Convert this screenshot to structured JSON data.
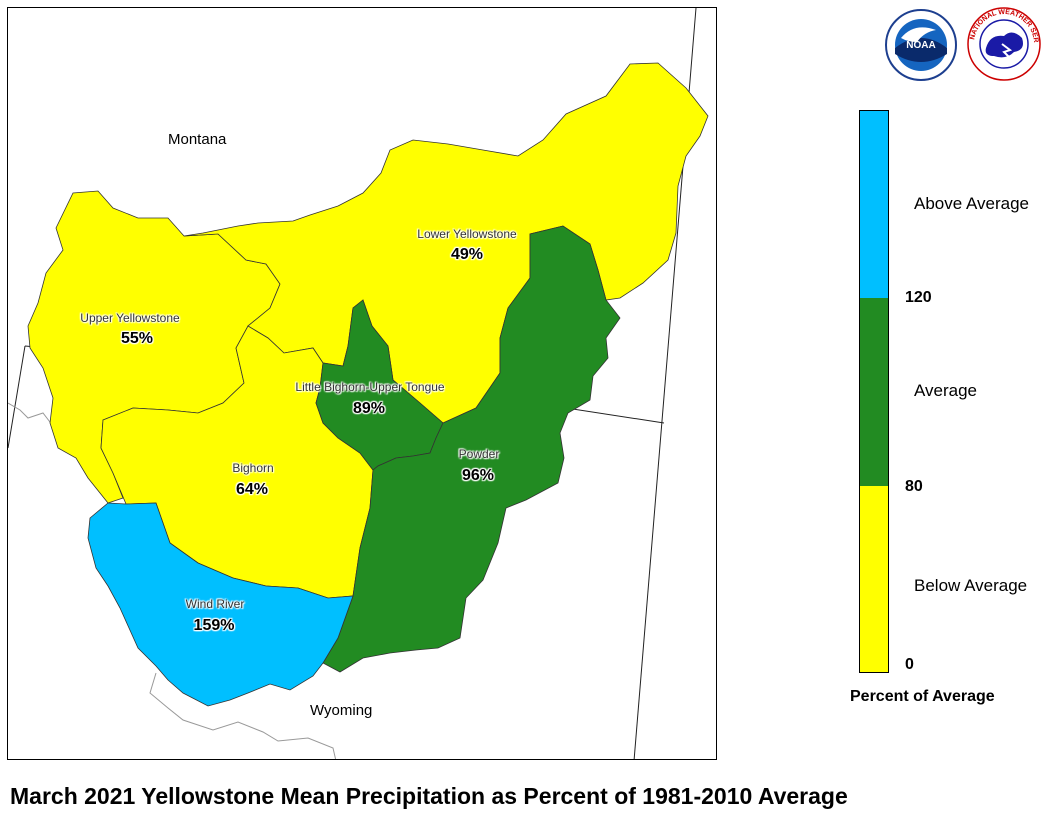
{
  "map": {
    "state_labels": [
      {
        "text": "Montana"
      },
      {
        "text": "Wyoming"
      }
    ],
    "basins": [
      {
        "name": "Upper Yellowstone",
        "value": "55%",
        "category": "below",
        "color": "#ffff00"
      },
      {
        "name": "Lower Yellowstone",
        "value": "49%",
        "category": "below",
        "color": "#ffff00"
      },
      {
        "name": "Little Bighorn-Upper Tongue",
        "value": "89%",
        "category": "average",
        "color": "#228b22"
      },
      {
        "name": "Powder",
        "value": "96%",
        "category": "average",
        "color": "#228b22"
      },
      {
        "name": "Bighorn",
        "value": "64%",
        "category": "below",
        "color": "#ffff00"
      },
      {
        "name": "Wind River",
        "value": "159%",
        "category": "above",
        "color": "#00bfff"
      }
    ]
  },
  "legend": {
    "title": "Percent of Average",
    "categories": [
      {
        "label": "Above Average",
        "color": "#00bfff"
      },
      {
        "label": "Average",
        "color": "#228b22"
      },
      {
        "label": "Below Average",
        "color": "#ffff00"
      }
    ],
    "ticks": [
      "120",
      "80",
      "0"
    ]
  },
  "title": "March 2021 Yellowstone Mean Precipitation as Percent of 1981-2010 Average",
  "logos": [
    {
      "name": "noaa-logo",
      "text": "NOAA"
    },
    {
      "name": "nws-logo",
      "text": "NATIONAL WEATHER SERVICE"
    }
  ]
}
